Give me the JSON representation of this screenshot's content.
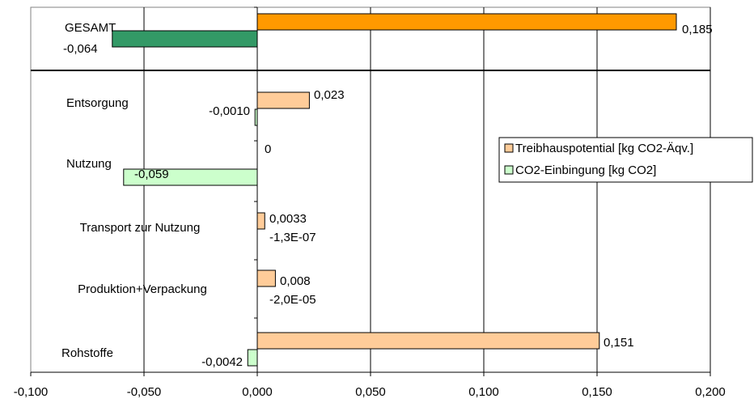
{
  "chart_data": {
    "type": "bar",
    "orientation": "horizontal",
    "categories": [
      "GESAMT",
      "Entsorgung",
      "Nutzung",
      "Transport zur Nutzung",
      "Produktion+Verpackung",
      "Rohstoffe"
    ],
    "series": [
      {
        "name": "Treibhauspotential [kg CO2-Äqv.]",
        "values": [
          0.185,
          0.023,
          0,
          0.0033,
          0.008,
          0.151
        ],
        "labels": [
          "0,185",
          "0,023",
          "0",
          "0,0033",
          "0,008",
          "0,151"
        ]
      },
      {
        "name": "CO2-Einbingung [kg CO2]",
        "values": [
          -0.064,
          -0.001,
          -0.059,
          -1.3e-07,
          -2e-05,
          -0.0042
        ],
        "labels": [
          "-0,064",
          "-0,0010",
          "-0,059",
          "-1,3E-07",
          "-2,0E-05",
          "-0,0042"
        ]
      }
    ],
    "xlim": [
      -0.1,
      0.2
    ],
    "xticks": [
      -0.1,
      -0.05,
      0,
      0.05,
      0.1,
      0.15,
      0.2
    ],
    "xtick_labels": [
      "-0,100",
      "-0,050",
      "0,000",
      "0,050",
      "0,100",
      "0,150",
      "0,200"
    ],
    "grid": "vertical",
    "legend_position": "right",
    "colors": {
      "total_positive": "#FF9900",
      "total_negative": "#339966",
      "positive": "#FFCC99",
      "negative": "#CCFFCC",
      "stroke": "#000000",
      "grid": "#000000"
    }
  }
}
